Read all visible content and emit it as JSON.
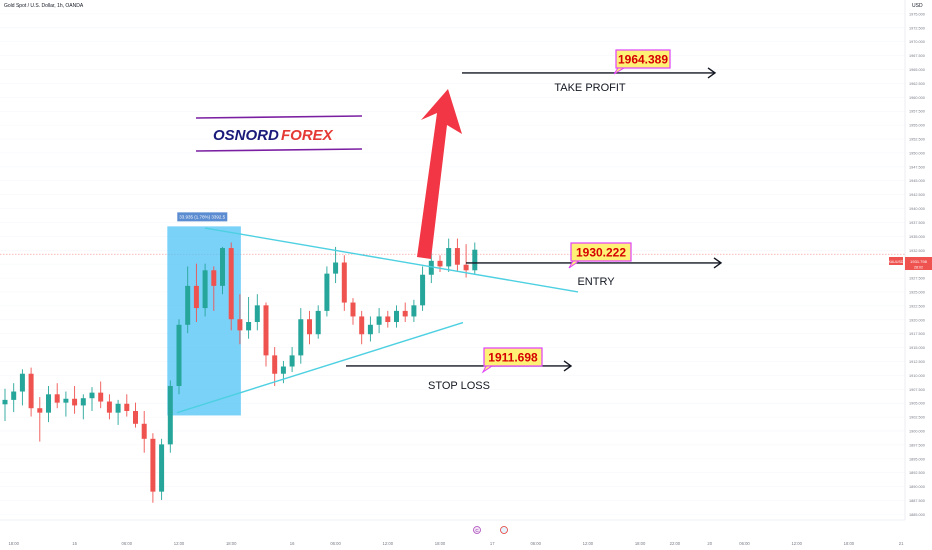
{
  "header": {
    "title": "Gold Spot / U.S. Dollar, 1h, OANDA",
    "currency": "USD"
  },
  "brand": {
    "word1": "OSNORD",
    "word2": "FOREX",
    "color1": "#1a1a7a",
    "color2": "#e53935",
    "rule_color": "#7b1fa2"
  },
  "trade": {
    "take_profit": {
      "price_label": "1964.389",
      "text": "TAKE PROFIT",
      "price": 1964.389
    },
    "entry": {
      "price_label": "1930.222",
      "text": "ENTRY",
      "price": 1930.222
    },
    "stop_loss": {
      "price_label": "1911.698",
      "text": "STOP LOSS",
      "price": 1911.698
    }
  },
  "measure_label": "33.935 (1.78%) 3392.5",
  "current_price": {
    "symbol": "XAUUSD",
    "value": "1931.798",
    "countdown": "28:02"
  },
  "colors": {
    "bull": "#26a69a",
    "bear": "#ef5350",
    "triangle": "#4dd0e1",
    "arrow": "#f23645",
    "box": "#4fc3f7",
    "label_fill": "#fff176",
    "label_stroke": "#e040fb"
  },
  "chart_data": {
    "type": "candlestick",
    "title": "Gold Spot / U.S. Dollar, 1h, OANDA",
    "y_axis_unit": "USD",
    "ylim": [
      1884,
      1977.5
    ],
    "y_ticks": [
      "1975.000",
      "1972.500",
      "1970.000",
      "1967.500",
      "1965.000",
      "1962.500",
      "1960.000",
      "1957.500",
      "1955.000",
      "1952.500",
      "1950.000",
      "1947.500",
      "1945.000",
      "1942.500",
      "1940.000",
      "1937.500",
      "1935.000",
      "1932.500",
      "1930.000",
      "1927.500",
      "1925.000",
      "1922.500",
      "1920.000",
      "1917.500",
      "1915.000",
      "1912.500",
      "1910.000",
      "1907.500",
      "1905.000",
      "1902.500",
      "1900.000",
      "1897.500",
      "1895.000",
      "1892.500",
      "1890.000",
      "1887.500",
      "1885.000"
    ],
    "x_ticks": [
      {
        "label": "18:00",
        "i": 1
      },
      {
        "label": "15",
        "i": 8
      },
      {
        "label": "06:00",
        "i": 14
      },
      {
        "label": "12:00",
        "i": 20
      },
      {
        "label": "18:00",
        "i": 26
      },
      {
        "label": "16",
        "i": 33
      },
      {
        "label": "06:00",
        "i": 38
      },
      {
        "label": "12:00",
        "i": 44
      },
      {
        "label": "18:00",
        "i": 50
      },
      {
        "label": "17",
        "i": 56
      },
      {
        "label": "06:00",
        "i": 61
      },
      {
        "label": "12:00",
        "i": 67
      },
      {
        "label": "18:00",
        "i": 73
      },
      {
        "label": "22:00",
        "i": 77
      },
      {
        "label": "20",
        "i": 81
      },
      {
        "label": "06:00",
        "i": 85
      },
      {
        "label": "12:00",
        "i": 91
      },
      {
        "label": "18:00",
        "i": 97
      },
      {
        "label": "21",
        "i": 103
      },
      {
        "label": "06:00",
        "i": 109
      },
      {
        "label": "12:00",
        "i": 115
      },
      {
        "label": "18:00",
        "i": 121
      },
      {
        "label": "22",
        "i": 127
      },
      {
        "label": "06:0",
        "i": 133
      }
    ],
    "ohlc": [
      [
        1904.8,
        1907.6,
        1901.8,
        1905.6
      ],
      [
        1905.6,
        1908.6,
        1903.4,
        1907.1
      ],
      [
        1907.1,
        1911.1,
        1904.6,
        1910.3
      ],
      [
        1910.3,
        1911.4,
        1902.6,
        1904.1
      ],
      [
        1904.1,
        1906.1,
        1898.1,
        1903.3
      ],
      [
        1903.3,
        1908.1,
        1901.6,
        1906.6
      ],
      [
        1906.6,
        1908.6,
        1904.1,
        1905.1
      ],
      [
        1905.1,
        1907.1,
        1902.6,
        1905.8
      ],
      [
        1905.8,
        1908.1,
        1903.1,
        1904.6
      ],
      [
        1904.6,
        1906.6,
        1902.1,
        1905.9
      ],
      [
        1905.9,
        1907.9,
        1903.6,
        1906.9
      ],
      [
        1906.9,
        1908.9,
        1904.1,
        1905.3
      ],
      [
        1905.3,
        1906.6,
        1902.1,
        1903.3
      ],
      [
        1903.3,
        1905.6,
        1901.1,
        1904.9
      ],
      [
        1904.9,
        1906.6,
        1902.6,
        1903.6
      ],
      [
        1903.6,
        1905.1,
        1900.6,
        1901.3
      ],
      [
        1901.3,
        1903.6,
        1896.1,
        1898.6
      ],
      [
        1898.6,
        1899.6,
        1887.1,
        1889.1
      ],
      [
        1889.1,
        1898.6,
        1887.6,
        1897.6
      ],
      [
        1897.6,
        1909.1,
        1896.1,
        1908.1
      ],
      [
        1908.1,
        1920.1,
        1906.6,
        1919.1
      ],
      [
        1919.1,
        1929.6,
        1917.6,
        1926.1
      ],
      [
        1926.1,
        1930.1,
        1919.6,
        1922.1
      ],
      [
        1922.1,
        1930.1,
        1920.6,
        1928.9
      ],
      [
        1928.9,
        1929.6,
        1921.6,
        1926.1
      ],
      [
        1926.1,
        1933.1,
        1924.6,
        1932.9
      ],
      [
        1932.9,
        1933.9,
        1918.1,
        1920.1
      ],
      [
        1920.1,
        1924.6,
        1915.6,
        1918.1
      ],
      [
        1918.1,
        1924.1,
        1916.6,
        1919.6
      ],
      [
        1919.6,
        1924.6,
        1918.1,
        1922.6
      ],
      [
        1922.6,
        1923.1,
        1911.6,
        1913.6
      ],
      [
        1913.6,
        1915.1,
        1908.1,
        1910.3
      ],
      [
        1910.3,
        1912.6,
        1908.6,
        1911.6
      ],
      [
        1911.6,
        1915.1,
        1910.6,
        1913.6
      ],
      [
        1913.6,
        1922.1,
        1912.1,
        1920.1
      ],
      [
        1920.1,
        1921.6,
        1915.6,
        1917.4
      ],
      [
        1917.4,
        1922.6,
        1916.6,
        1921.6
      ],
      [
        1921.6,
        1929.6,
        1920.6,
        1928.3
      ],
      [
        1928.3,
        1933.1,
        1926.6,
        1930.3
      ],
      [
        1930.3,
        1931.6,
        1921.6,
        1923.1
      ],
      [
        1923.1,
        1923.9,
        1919.1,
        1920.6
      ],
      [
        1920.6,
        1921.6,
        1915.6,
        1917.4
      ],
      [
        1917.4,
        1920.6,
        1916.1,
        1919.1
      ],
      [
        1919.1,
        1922.1,
        1917.6,
        1920.6
      ],
      [
        1920.6,
        1921.6,
        1918.6,
        1919.6
      ],
      [
        1919.6,
        1922.6,
        1918.6,
        1921.6
      ],
      [
        1921.6,
        1923.1,
        1919.6,
        1920.6
      ],
      [
        1920.6,
        1923.6,
        1919.6,
        1922.6
      ],
      [
        1922.6,
        1929.6,
        1921.6,
        1928.1
      ],
      [
        1928.1,
        1932.1,
        1926.6,
        1930.6
      ],
      [
        1930.6,
        1931.6,
        1928.6,
        1929.6
      ],
      [
        1929.6,
        1934.6,
        1928.6,
        1932.9
      ],
      [
        1932.9,
        1934.6,
        1928.6,
        1929.9
      ],
      [
        1929.9,
        1933.6,
        1927.6,
        1928.9
      ],
      [
        1928.9,
        1933.9,
        1928.1,
        1932.6
      ]
    ],
    "annotations": [
      "TAKE PROFIT 1964.389",
      "ENTRY 1930.222",
      "STOP LOSS 1911.698"
    ]
  }
}
